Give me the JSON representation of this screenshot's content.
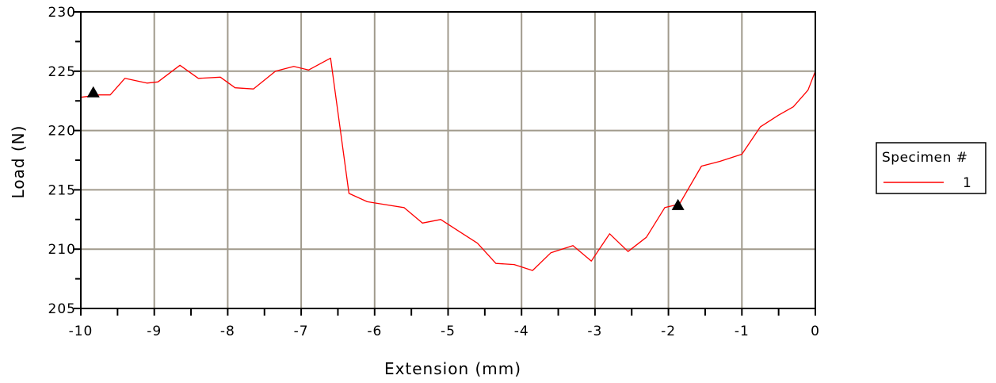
{
  "chart_data": {
    "type": "line",
    "title": "",
    "xlabel": "Extension (mm)",
    "ylabel": "Load (N)",
    "xlim": [
      -10,
      0
    ],
    "ylim": [
      205,
      230
    ],
    "x_ticks": [
      -10,
      -9,
      -8,
      -7,
      -6,
      -5,
      -4,
      -3,
      -2,
      -1,
      0
    ],
    "x_tick_labels": [
      "-10",
      "-9",
      "-8",
      "-7",
      "-6",
      "-5",
      "-4",
      "-3",
      "-2",
      "-1",
      "0"
    ],
    "y_ticks": [
      205,
      210,
      215,
      220,
      225,
      230
    ],
    "y_tick_labels": [
      "205",
      "210",
      "215",
      "220",
      "225",
      "230"
    ],
    "grid": true,
    "legend": {
      "title": "Specimen #",
      "position": "right",
      "entries": [
        "1"
      ]
    },
    "series": [
      {
        "name": "1",
        "color": "#ff0000",
        "x": [
          -10,
          -9.75,
          -9.6,
          -9.4,
          -9.1,
          -8.95,
          -8.65,
          -8.4,
          -8.1,
          -7.9,
          -7.65,
          -7.35,
          -7.1,
          -6.9,
          -6.6,
          -6.35,
          -6.1,
          -5.9,
          -5.6,
          -5.35,
          -5.1,
          -4.85,
          -4.6,
          -4.35,
          -4.1,
          -3.85,
          -3.6,
          -3.3,
          -3.05,
          -2.8,
          -2.55,
          -2.3,
          -2.05,
          -1.85,
          -1.55,
          -1.3,
          -1.0,
          -0.75,
          -0.5,
          -0.3,
          -0.1,
          0
        ],
        "values": [
          222.8,
          223.0,
          223.0,
          224.4,
          224.0,
          224.1,
          225.5,
          224.4,
          224.5,
          223.6,
          223.5,
          225.0,
          225.4,
          225.1,
          226.1,
          214.7,
          214.0,
          213.8,
          213.5,
          212.2,
          212.5,
          211.5,
          210.5,
          208.8,
          208.7,
          208.2,
          209.7,
          210.3,
          209.0,
          211.3,
          209.8,
          211.0,
          213.5,
          213.8,
          217.0,
          217.4,
          218.0,
          220.3,
          221.3,
          222.0,
          223.4,
          225.0
        ]
      }
    ],
    "markers": [
      {
        "x": -9.83,
        "y": 223.2,
        "shape": "triangle",
        "color": "#000000"
      },
      {
        "x": -1.87,
        "y": 213.7,
        "shape": "triangle",
        "color": "#000000"
      }
    ]
  }
}
